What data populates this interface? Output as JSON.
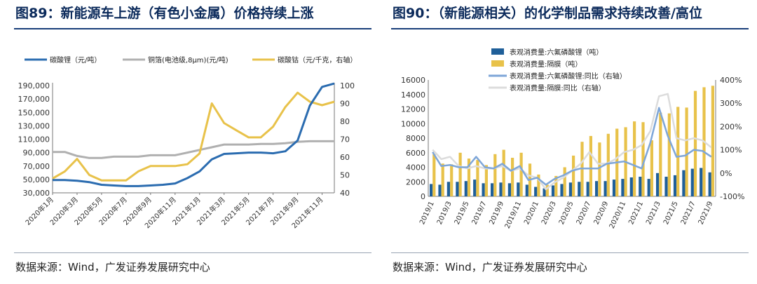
{
  "left": {
    "fig_num": "图89",
    "fig_title": "：新能源车上游（有色小金属）价格持续上涨",
    "source": "数据来源：Wind，广发证券发展研究中心",
    "chart_data": {
      "type": "line",
      "title": "",
      "legend_placement": "top",
      "x": [
        "2020年1月",
        "2020年2月",
        "2020年3月",
        "2020年4月",
        "2020年5月",
        "2020年6月",
        "2020年7月",
        "2020年8月",
        "2020年9月",
        "2020年10月",
        "2020年11月",
        "2020年12月",
        "2021年1月",
        "2021年2月",
        "2021年3月",
        "2021年4月",
        "2021年5月",
        "2021年6月",
        "2021年7月",
        "2021年8月",
        "2021年9月",
        "2021年10月",
        "2021年11月",
        "2021年12月"
      ],
      "x_tick_labels": [
        "2020年1月",
        "2020年3月",
        "2020年5月",
        "2020年7月",
        "2020年9月",
        "2020年11月",
        "2021年1月",
        "2021年3月",
        "2021年5月",
        "2021年7月",
        "2021年9月",
        "2021年11月"
      ],
      "y_left": {
        "min": 30000,
        "max": 190000,
        "ticks": [
          "30,000",
          "50,000",
          "70,000",
          "90,000",
          "110,000",
          "130,000",
          "150,000",
          "170,000",
          "190,000"
        ]
      },
      "y_right": {
        "min": 40,
        "max": 100,
        "ticks": [
          "40",
          "50",
          "60",
          "70",
          "80",
          "90",
          "100"
        ]
      },
      "grid": false,
      "series": [
        {
          "name": "碳酸锂（元/吨）",
          "color": "#2b6cb0",
          "axis": "left",
          "values": [
            49000,
            49000,
            48000,
            46000,
            42000,
            41000,
            40000,
            40000,
            41000,
            42000,
            44000,
            52000,
            62000,
            80000,
            88000,
            89000,
            90000,
            90000,
            89000,
            92000,
            108000,
            160000,
            188000,
            193000
          ]
        },
        {
          "name": "铜箔(电池级,8μm)(元/吨)",
          "color": "#b0b0b0",
          "axis": "left",
          "values": [
            91000,
            91000,
            85000,
            82000,
            82000,
            84000,
            84000,
            84000,
            86000,
            86000,
            86000,
            90000,
            94000,
            98000,
            102000,
            102000,
            102000,
            103000,
            103000,
            104000,
            106000,
            107000,
            107000,
            107000
          ]
        },
        {
          "name": "碳酸钴（元/千克，右轴）",
          "color": "#e8c24a",
          "axis": "right",
          "values": [
            48,
            52,
            59,
            50,
            47,
            47,
            47,
            52,
            55,
            55,
            55,
            56,
            62,
            90,
            79,
            75,
            71,
            71,
            77,
            88,
            96,
            91,
            89,
            91
          ]
        }
      ]
    }
  },
  "right": {
    "fig_num": "图90",
    "fig_title": "：（新能源相关）的化学制品需求持续改善/高位",
    "source": "数据来源：Wind，广发证券发展研究中心",
    "chart_data": {
      "type": "bar",
      "title": "",
      "legend_placement": "top-left",
      "x": [
        "2019/1",
        "2019/2",
        "2019/3",
        "2019/4",
        "2019/5",
        "2019/6",
        "2019/7",
        "2019/8",
        "2019/9",
        "2019/10",
        "2019/11",
        "2019/12",
        "2020/1",
        "2020/2",
        "2020/3",
        "2020/4",
        "2020/5",
        "2020/6",
        "2020/7",
        "2020/8",
        "2020/9",
        "2020/10",
        "2020/11",
        "2020/12",
        "2021/1",
        "2021/2",
        "2021/3",
        "2021/4",
        "2021/5",
        "2021/6",
        "2021/7",
        "2021/8",
        "2021/9"
      ],
      "x_tick_labels": [
        "2019/1",
        "2019/3",
        "2019/5",
        "2019/7",
        "2019/9",
        "2019/11",
        "2020/1",
        "2020/3",
        "2020/5",
        "2020/7",
        "2020/9",
        "2020/11",
        "2021/1",
        "2021/3",
        "2021/5",
        "2021/7",
        "2021/9"
      ],
      "y_left": {
        "min": 0,
        "max": 16000,
        "ticks": [
          "0",
          "2000",
          "4000",
          "6000",
          "8000",
          "10000",
          "12000",
          "14000",
          "16000"
        ]
      },
      "y_right": {
        "min": -100,
        "max": 400,
        "ticks": [
          "-100%",
          "0%",
          "100%",
          "200%",
          "300%",
          "400%"
        ]
      },
      "grid": false,
      "series": [
        {
          "name": "表观消费量:六氟磷酸锂（吨）",
          "type": "bar",
          "color": "#1f5f99",
          "axis": "left",
          "values": [
            1700,
            1600,
            2000,
            2000,
            2100,
            2300,
            1800,
            1800,
            1900,
            1800,
            1900,
            1600,
            1300,
            1100,
            1500,
            1700,
            1900,
            2000,
            2000,
            2100,
            2100,
            2300,
            2400,
            2600,
            2700,
            2400,
            3200,
            2700,
            2900,
            3600,
            3800,
            3900,
            3300
          ]
        },
        {
          "name": "表观消费量:隔膜（吨）",
          "type": "bar",
          "color": "#e8c24a",
          "axis": "left",
          "values": [
            5800,
            4500,
            4400,
            6000,
            5200,
            5000,
            4300,
            5800,
            6400,
            5300,
            6000,
            4500,
            3000,
            1600,
            2800,
            4000,
            5600,
            7500,
            8300,
            7400,
            8600,
            9300,
            9500,
            10300,
            10200,
            7700,
            11500,
            11400,
            12300,
            12200,
            14500,
            15000,
            15200
          ]
        },
        {
          "name": "表观消费量:六氟磷酸锂:同比（右轴）",
          "type": "line",
          "color": "#7ea6d8",
          "axis": "right",
          "values": [
            90,
            30,
            35,
            25,
            25,
            70,
            25,
            20,
            40,
            10,
            30,
            -30,
            -20,
            -50,
            -25,
            -10,
            10,
            20,
            20,
            20,
            40,
            45,
            50,
            35,
            20,
            130,
            280,
            160,
            70,
            75,
            100,
            95,
            70
          ]
        },
        {
          "name": "表观消费量:隔膜:同比（右轴）",
          "type": "line",
          "color": "#dcdcdc",
          "axis": "right",
          "values": [
            100,
            60,
            70,
            30,
            20,
            30,
            20,
            20,
            30,
            10,
            20,
            -10,
            -20,
            -70,
            -40,
            -20,
            10,
            40,
            90,
            40,
            40,
            60,
            90,
            100,
            120,
            180,
            330,
            340,
            150,
            140,
            150,
            140,
            110
          ]
        }
      ]
    }
  }
}
